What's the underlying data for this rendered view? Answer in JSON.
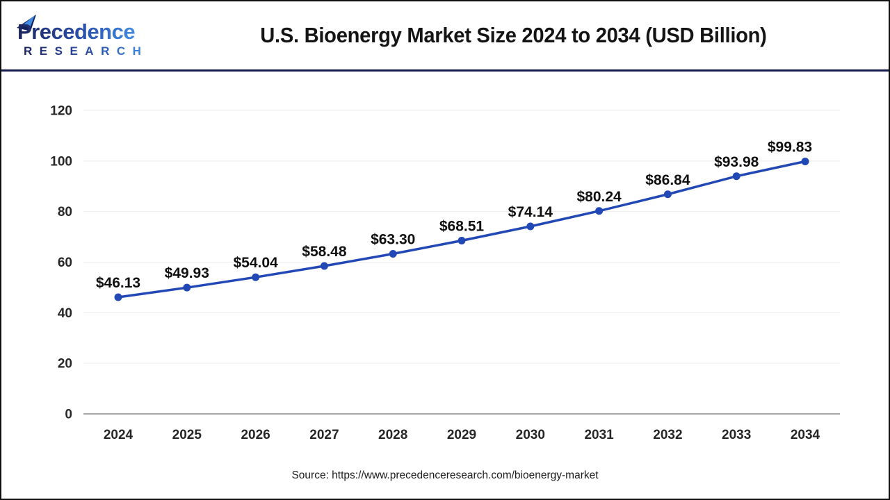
{
  "header": {
    "logo": {
      "brand_line1": "Precedence",
      "brand_line2": "RESEARCH"
    },
    "title": "U.S. Bioenergy Market Size 2024 to 2034 (USD Billion)"
  },
  "chart_data": {
    "type": "line",
    "title": "U.S. Bioenergy Market Size 2024 to 2034 (USD Billion)",
    "categories": [
      "2024",
      "2025",
      "2026",
      "2027",
      "2028",
      "2029",
      "2030",
      "2031",
      "2032",
      "2033",
      "2034"
    ],
    "series": [
      {
        "name": "U.S. Bioenergy Market Size (USD Billion)",
        "values": [
          46.13,
          49.93,
          54.04,
          58.48,
          63.3,
          68.51,
          74.14,
          80.24,
          86.84,
          93.98,
          99.83
        ]
      }
    ],
    "data_labels": [
      "$46.13",
      "$49.93",
      "$54.04",
      "$58.48",
      "$63.30",
      "$68.51",
      "$74.14",
      "$80.24",
      "$86.84",
      "$93.98",
      "$99.83"
    ],
    "xlabel": "",
    "ylabel": "",
    "ylim": [
      0,
      120
    ],
    "yticks": [
      0,
      20,
      40,
      60,
      80,
      100,
      120
    ],
    "grid": true,
    "legend": false,
    "theme": {
      "line_color": "#2148b4",
      "marker_color": "#2148b4",
      "grid_color": "#ececec",
      "axis_line_color": "#a8a8a8",
      "header_rule_color": "#181c4d",
      "logo_gradient_start": "#1b2660",
      "logo_gradient_end": "#3f8ce2"
    }
  },
  "footer": {
    "source": "Source: https://www.precedenceresearch.com/bioenergy-market"
  }
}
